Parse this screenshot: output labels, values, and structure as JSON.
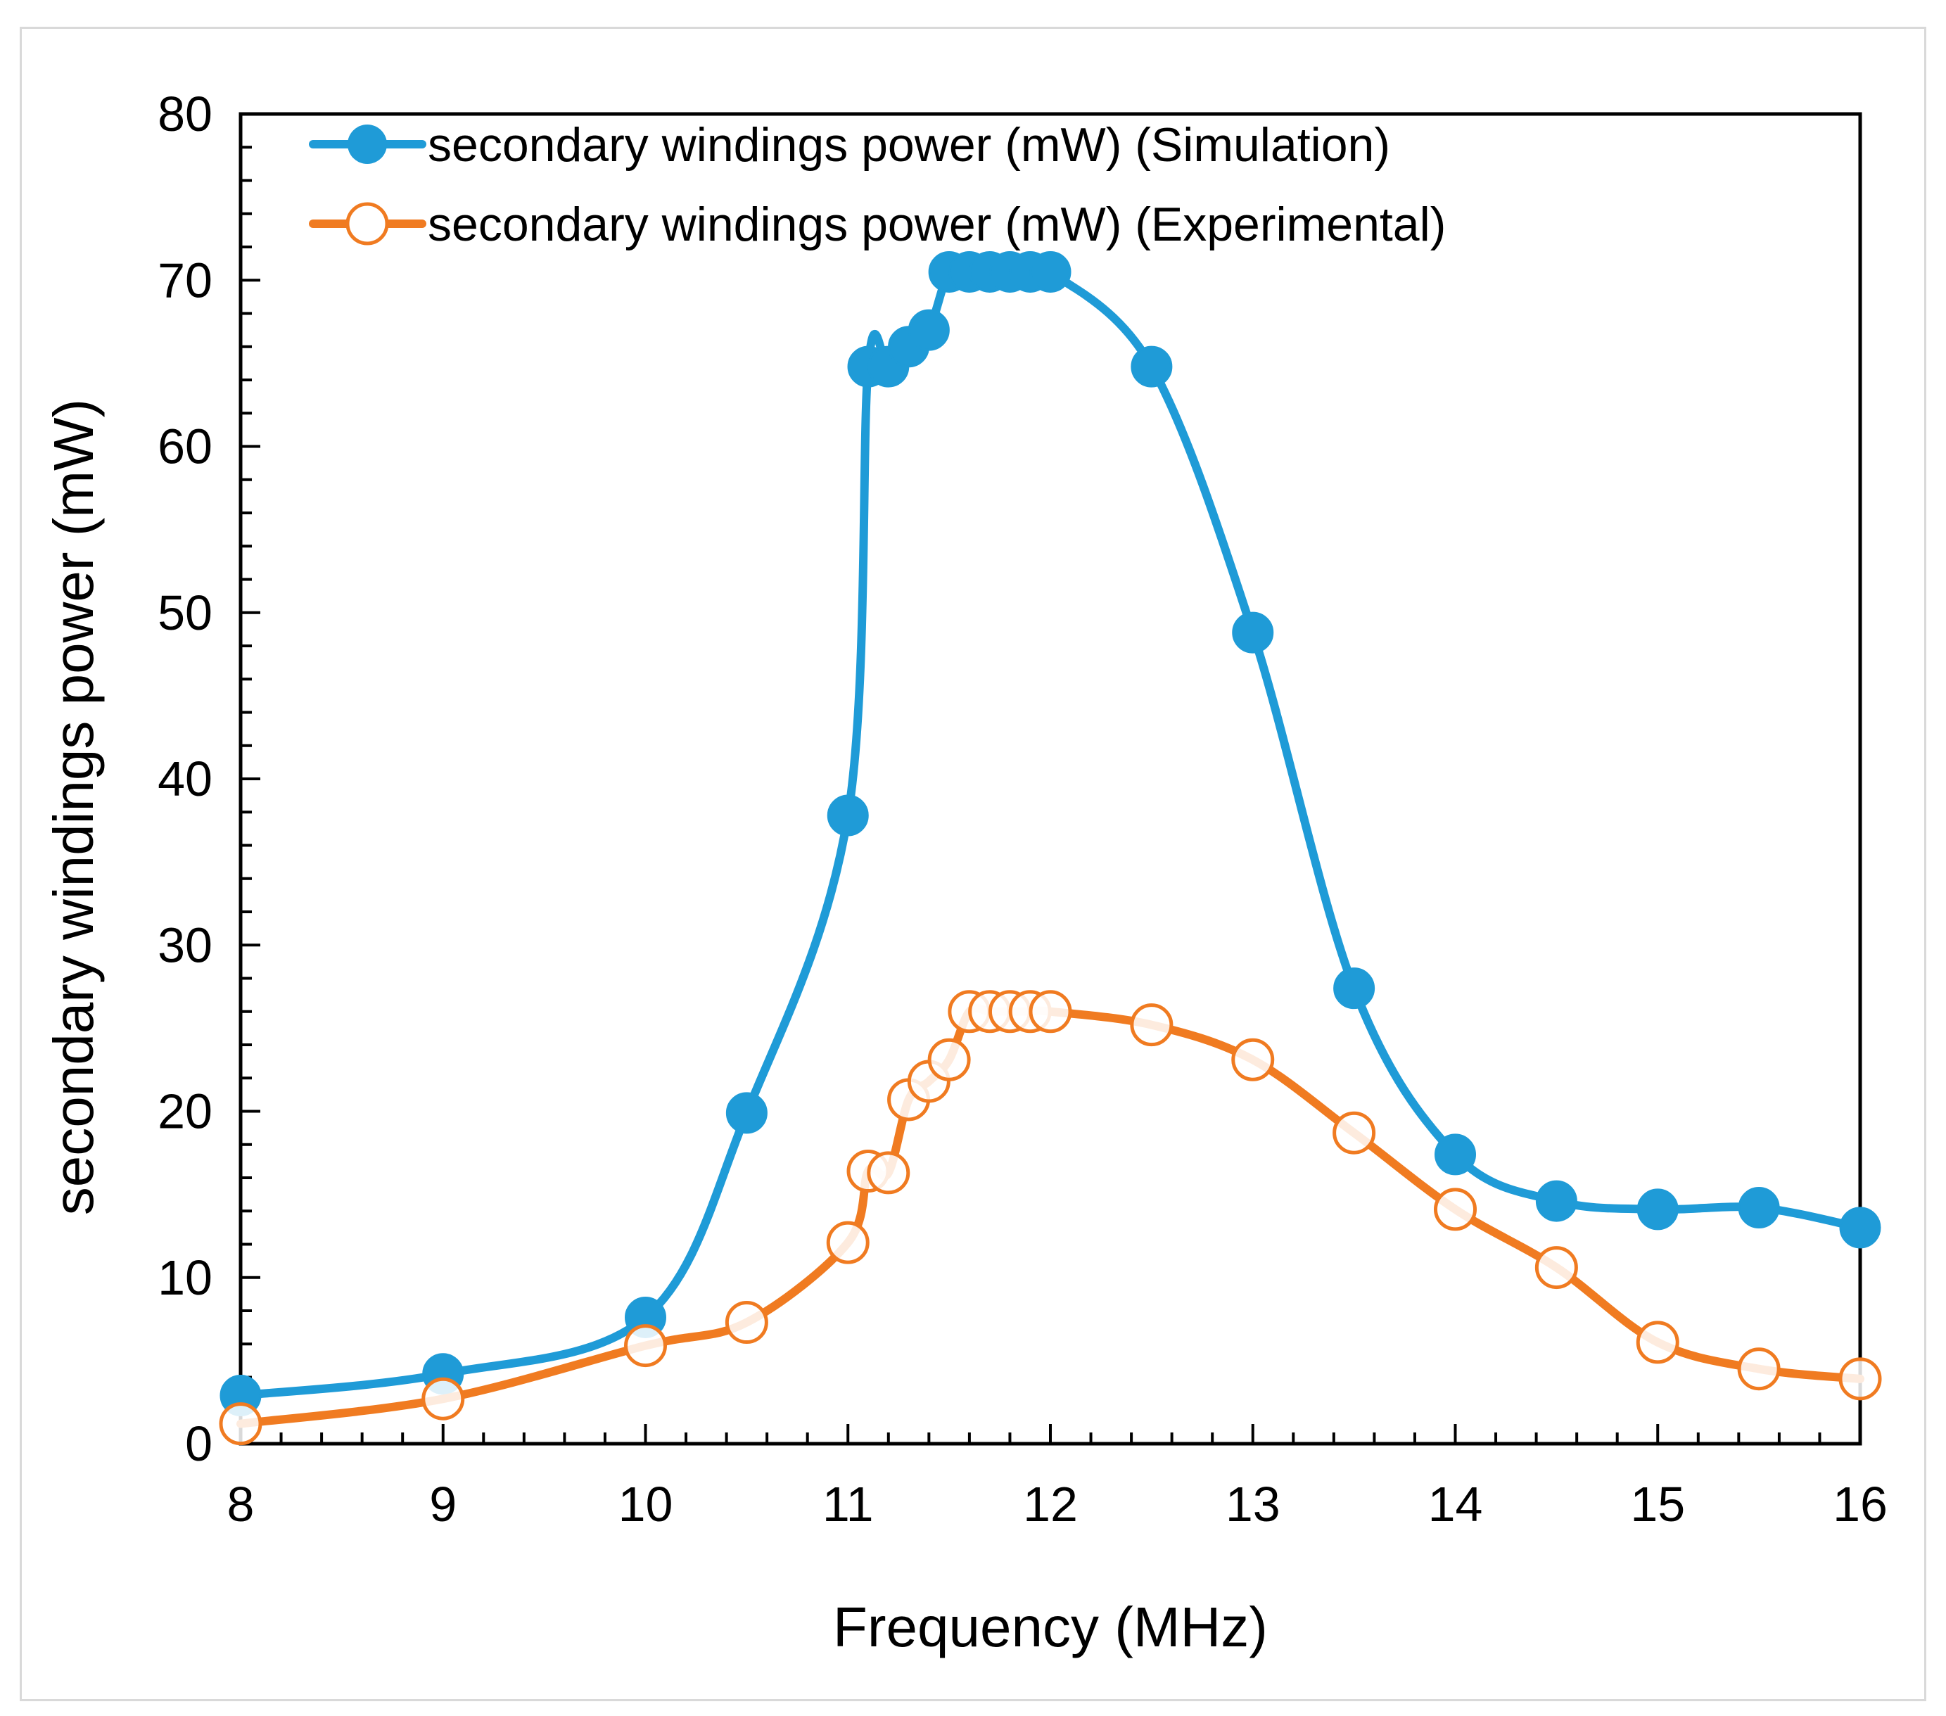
{
  "chart_data": {
    "type": "line",
    "title": "",
    "xlabel": "Frequency (MHz)",
    "ylabel": "secondary windings power (mW)",
    "xlim": [
      8,
      16
    ],
    "ylim": [
      0,
      80
    ],
    "x_ticks": [
      8,
      9,
      10,
      11,
      12,
      13,
      14,
      15,
      16
    ],
    "y_ticks": [
      0,
      10,
      20,
      30,
      40,
      50,
      60,
      70,
      80
    ],
    "grid": false,
    "legend_position": "top-left",
    "series": [
      {
        "name": "secondary windings power (mW) (Simulation)",
        "color": "#1f9bd7",
        "marker": "filled-circle",
        "x": [
          8,
          9,
          10,
          10.5,
          11,
          11.1,
          11.2,
          11.3,
          11.4,
          11.5,
          11.6,
          11.7,
          11.8,
          11.9,
          12,
          12.5,
          13,
          13.5,
          14,
          14.5,
          15,
          15.5,
          16
        ],
        "y": [
          2.9,
          4.2,
          7.6,
          19.9,
          37.8,
          64.8,
          64.8,
          66,
          67,
          70.5,
          70.5,
          70.5,
          70.5,
          70.5,
          70.5,
          64.8,
          48.8,
          27.4,
          17.4,
          14.6,
          14.1,
          14.2,
          13
        ]
      },
      {
        "name": "secondary windings power (mW) (Experimental)",
        "color": "#f07b21",
        "marker": "open-circle",
        "x": [
          8,
          9,
          10,
          10.5,
          11,
          11.1,
          11.2,
          11.3,
          11.4,
          11.5,
          11.6,
          11.7,
          11.8,
          11.9,
          12,
          12.5,
          13,
          13.5,
          14,
          14.5,
          15,
          15.5,
          16
        ],
        "y": [
          1.2,
          2.7,
          5.9,
          7.3,
          12.1,
          16.4,
          16.3,
          20.7,
          21.8,
          23.1,
          26,
          26,
          26,
          26,
          26,
          25.2,
          23.1,
          18.7,
          14.1,
          10.6,
          6.1,
          4.5,
          3.9
        ]
      }
    ]
  }
}
